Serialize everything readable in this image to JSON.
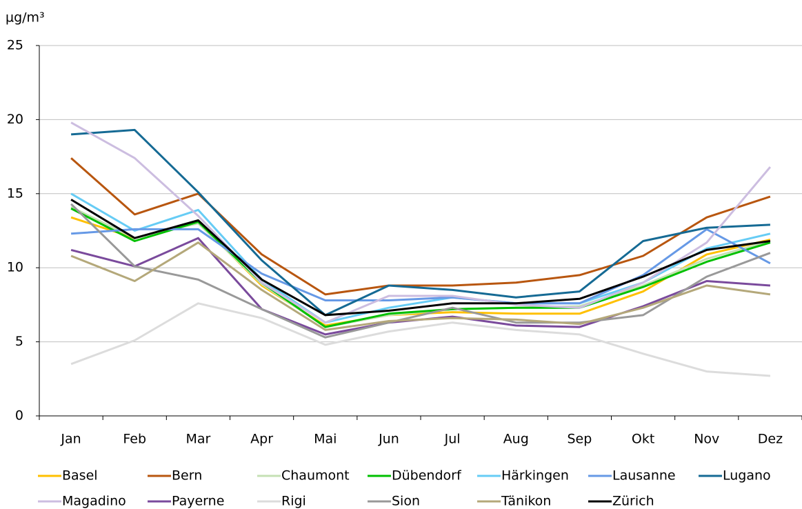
{
  "chart_data": {
    "type": "line",
    "y_label": "µg/m³",
    "categories": [
      "Jan",
      "Feb",
      "Mar",
      "Apr",
      "Mai",
      "Jun",
      "Jul",
      "Aug",
      "Sep",
      "Okt",
      "Nov",
      "Dez"
    ],
    "ylim": [
      0,
      25
    ],
    "yticks": [
      0,
      5,
      10,
      15,
      20,
      25
    ],
    "grid": true,
    "series": [
      {
        "name": "Basel",
        "color": "#ffc000",
        "values": [
          13.4,
          12.0,
          13.1,
          8.8,
          6.1,
          6.8,
          7.0,
          6.9,
          6.9,
          8.4,
          10.9,
          11.9
        ]
      },
      {
        "name": "Bern",
        "color": "#b8560f",
        "values": [
          17.4,
          13.6,
          15.0,
          10.9,
          8.2,
          8.8,
          8.8,
          9.0,
          9.5,
          10.8,
          13.4,
          14.8
        ]
      },
      {
        "name": "Chaumont",
        "color": "#c5e0b4",
        "values": [
          14.1,
          12.0,
          13.0,
          8.9,
          6.0,
          6.8,
          7.2,
          7.3,
          7.4,
          8.8,
          10.6,
          11.8
        ]
      },
      {
        "name": "Dübendorf",
        "color": "#00c000",
        "values": [
          14.0,
          11.8,
          13.1,
          9.0,
          6.0,
          6.9,
          7.2,
          7.3,
          7.3,
          8.7,
          10.4,
          11.7
        ]
      },
      {
        "name": "Härkingen",
        "color": "#66ccf5",
        "values": [
          15.0,
          12.5,
          13.9,
          9.2,
          6.3,
          7.3,
          8.0,
          7.6,
          7.6,
          9.0,
          11.3,
          12.3
        ]
      },
      {
        "name": "Lausanne",
        "color": "#6699e6",
        "values": [
          12.3,
          12.6,
          12.6,
          9.6,
          7.8,
          7.8,
          8.0,
          7.6,
          7.6,
          9.5,
          12.6,
          10.3
        ]
      },
      {
        "name": "Lugano",
        "color": "#156a94",
        "values": [
          19.0,
          19.3,
          15.1,
          10.5,
          6.8,
          8.8,
          8.5,
          8.0,
          8.4,
          11.8,
          12.7,
          12.9
        ]
      },
      {
        "name": "Magadino",
        "color": "#ccbde0",
        "values": [
          19.8,
          17.4,
          13.5,
          9.0,
          6.3,
          8.1,
          8.1,
          7.5,
          7.3,
          9.0,
          11.7,
          16.8
        ]
      },
      {
        "name": "Payerne",
        "color": "#7a4a9c",
        "values": [
          11.2,
          10.1,
          12.0,
          7.2,
          5.5,
          6.3,
          6.7,
          6.1,
          6.0,
          7.4,
          9.1,
          8.8
        ]
      },
      {
        "name": "Rigi",
        "color": "#dcdcdc",
        "values": [
          3.5,
          5.1,
          7.6,
          6.6,
          4.8,
          5.7,
          6.3,
          5.8,
          5.5,
          4.2,
          3.0,
          2.7
        ]
      },
      {
        "name": "Sion",
        "color": "#999999",
        "values": [
          14.3,
          10.1,
          9.2,
          7.2,
          5.3,
          6.3,
          7.3,
          6.3,
          6.3,
          6.8,
          9.4,
          11.0
        ]
      },
      {
        "name": "Tänikon",
        "color": "#b4a87a",
        "values": [
          10.8,
          9.1,
          11.7,
          8.5,
          5.8,
          6.4,
          6.6,
          6.5,
          6.2,
          7.3,
          8.8,
          8.2
        ]
      },
      {
        "name": "Zürich",
        "color": "#000000",
        "values": [
          14.6,
          12.0,
          13.2,
          9.2,
          6.8,
          7.1,
          7.6,
          7.6,
          7.9,
          9.4,
          11.2,
          11.8
        ]
      }
    ]
  }
}
